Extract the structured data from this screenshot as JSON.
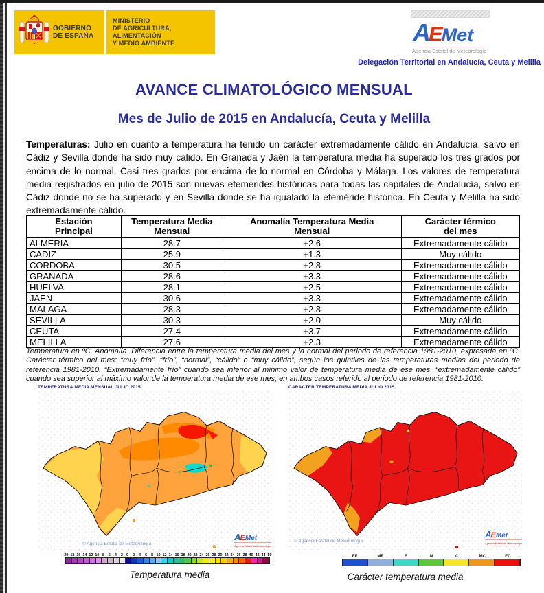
{
  "header": {
    "gobierno_line1": "GOBIERNO",
    "gobierno_line2": "DE ESPAÑA",
    "ministerio_line1": "MINISTERIO",
    "ministerio_line2": "DE AGRICULTURA, ALIMENTACIÓN",
    "ministerio_line3": "Y MEDIO AMBIENTE",
    "aemet_a": "A",
    "aemet_e": "E",
    "aemet_met": "Met",
    "aemet_sub": "Agencia Estatal de Meteorología",
    "delegacion": "Delegación Territorial en Andalucía, Ceuta y Melilla"
  },
  "title": "AVANCE CLIMATOLÓGICO MENSUAL",
  "subtitle": "Mes de Julio de 2015 en Andalucía, Ceuta y Melilla",
  "paragraph": {
    "label": "Temperaturas:",
    "text": " Julio en cuanto a temperatura ha tenido un carácter extremadamente cálido en Andalucía, salvo en Cádiz y Sevilla donde ha sido muy cálido. En Granada y Jaén la temperatura media ha superado los tres grados por encima de lo normal. Casi tres grados por encima de lo normal en Córdoba y Málaga. Los valores de temperatura media registrados en julio de 2015 son nuevas efemérides históricas para todas las capitales de Andalucía, salvo en Cádiz donde no se ha superado y en Sevilla donde se ha igualado la efeméride histórica. En Ceuta y Melilla ha sido extremadamente cálido."
  },
  "table": {
    "headers": [
      "Estación\nPrincipal",
      "Temperatura Media\nMensual",
      "Anomalía Temperatura Media\nMensual",
      "Carácter térmico\ndel mes"
    ],
    "rows": [
      [
        "ALMERIA",
        "28.7",
        "+2.6",
        "Extremadamente cálido"
      ],
      [
        "CADIZ",
        "25.9",
        "+1.3",
        "Muy cálido"
      ],
      [
        "CORDOBA",
        "30.5",
        "+2.8",
        "Extremadamente cálido"
      ],
      [
        "GRANADA",
        "28.6",
        "+3.3",
        "Extremadamente cálido"
      ],
      [
        "HUELVA",
        "28.1",
        "+2.5",
        "Extremadamente cálido"
      ],
      [
        "JAEN",
        "30.6",
        "+3.3",
        "Extremadamente cálido"
      ],
      [
        "MALAGA",
        "28.3",
        "+2.8",
        "Extremadamente cálido"
      ],
      [
        "SEVILLA",
        "30.3",
        "+2.0",
        "Muy cálido"
      ],
      [
        "CEUTA",
        "27.4",
        "+3.7",
        "Extremadamente cálido"
      ],
      [
        "MELILLA",
        "27.6",
        "+2.3",
        "Extremadamente cálido"
      ]
    ]
  },
  "footnote": "Temperatura en ºC. Anomalía: Diferencia entre la temperatura media del mes y la normal del periodo de referencia 1981-2010, expresada en ºC. Carácter térmico del mes: “muy frío”, “frío”, “normal”, “cálido” o “muy cálido”, según los quintiles de las temperaturas medias del periodo de referencia 1981-2010. “Extremadamente frío” cuando sea inferior al mínimo valor de temperatura media de ese mes, “extremadamente cálido” cuando sea superior al máximo valor de la temperatura media de ese mes; en ambos casos referido al periodo de referencia 1981-2010.",
  "maps": {
    "left": {
      "title": "TEMPERATURA MEDIA MENSUAL JULIO 2015",
      "caption": "Temperatura media",
      "copyright": "© Agencia Estatal de Meteorología",
      "scale_ticks": [
        "-20",
        "-18",
        "-16",
        "-14",
        "-12",
        "-10",
        "-8",
        "-6",
        "-4",
        "-2",
        "0",
        "2",
        "4",
        "6",
        "8",
        "10",
        "12",
        "14",
        "16",
        "18",
        "20",
        "22",
        "24",
        "26",
        "28",
        "30",
        "32",
        "34",
        "36",
        "38",
        "40",
        "42",
        "44",
        "50"
      ],
      "scale_colors": [
        "#8a2ba0",
        "#9c3bb4",
        "#ae4bc8",
        "#be5ed4",
        "#cc74dc",
        "#d892e2",
        "#cea6ce",
        "#c8b8c8",
        "#dcd2dc",
        "#f0ecf0",
        "#0a0a8c",
        "#1030c0",
        "#2458dc",
        "#3c80ee",
        "#64a6f4",
        "#90c6f8",
        "#30d8f0",
        "#10d0c8",
        "#18c49c",
        "#28c066",
        "#54c83c",
        "#90d628",
        "#c8e618",
        "#eef00c",
        "#fff200",
        "#ffe000",
        "#ffcc00",
        "#ffae00",
        "#ff8c00",
        "#ff6000",
        "#f51800",
        "#f028a8",
        "#d01890",
        "#8e0a3c"
      ]
    },
    "right": {
      "title": "CARACTER TEMPERATURA MEDIA JULIO 2015",
      "caption": "Carácter temperatura media",
      "copyright": "© Agencia Estatal de Meteorología",
      "legend_labels": [
        "EF",
        "MF",
        "F",
        "N",
        "C",
        "MC",
        "EC"
      ],
      "legend_colors": [
        "#1e50d2",
        "#8fafdc",
        "#3cd8c8",
        "#5cc83c",
        "#f5e628",
        "#ee9718",
        "#ee1010"
      ]
    }
  }
}
